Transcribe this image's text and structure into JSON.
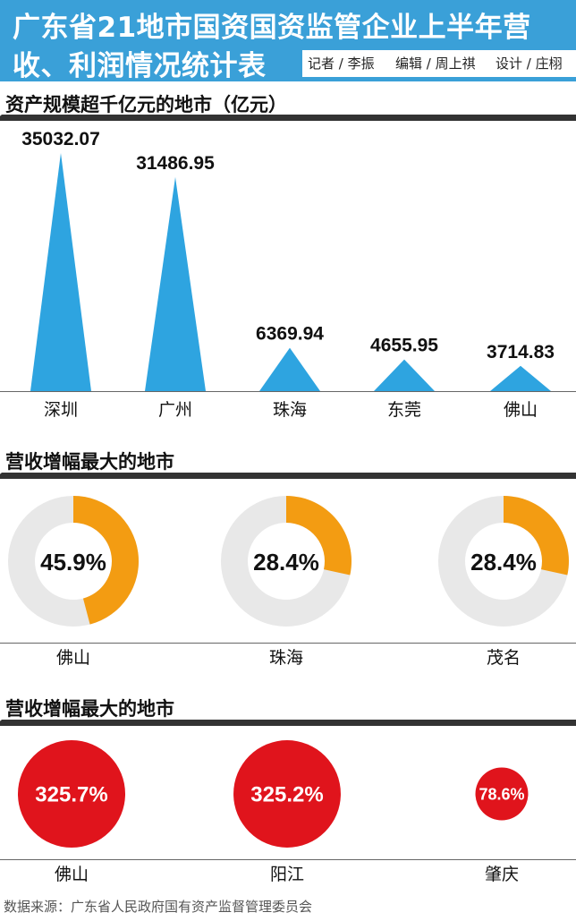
{
  "header": {
    "title_line1": "广东省21地市国资国资监管企业上半年营",
    "title_line2": "收、利润情况统计表",
    "credit_reporter": "记者 / 李振",
    "credit_editor": "编辑 / 周上祺",
    "credit_design": "设计 / 庄栩"
  },
  "colors": {
    "header": "#3aa0d8",
    "bar": "#2ea4e0",
    "donut_fill": "#f39c12",
    "donut_track": "#e8e8e8",
    "bubble": "#e0141c"
  },
  "chart_data": [
    {
      "type": "bar",
      "title": "资产规模超千亿元的地市（亿元）",
      "categories": [
        "深圳",
        "广州",
        "珠海",
        "东莞",
        "佛山"
      ],
      "values": [
        35032.07,
        31486.95,
        6369.94,
        4655.95,
        3714.83
      ],
      "value_labels": [
        "35032.07",
        "31486.95",
        "6369.94",
        "4655.95",
        "3714.83"
      ],
      "mark_shape": "triangle",
      "grid": false
    },
    {
      "type": "pie",
      "title": "营收增幅最大的地市",
      "categories": [
        "佛山",
        "珠海",
        "茂名"
      ],
      "values": [
        45.9,
        28.4,
        28.4
      ],
      "value_labels": [
        "45.9%",
        "28.4%",
        "28.4%"
      ],
      "mark_shape": "donut"
    },
    {
      "type": "scatter",
      "title": "营收增幅最大的地市",
      "categories": [
        "佛山",
        "阳江",
        "肇庆"
      ],
      "values": [
        325.7,
        325.2,
        78.6
      ],
      "value_labels": [
        "325.7%",
        "325.2%",
        "78.6%"
      ],
      "mark_shape": "bubble"
    }
  ],
  "footer": {
    "source": "数据来源：广东省人民政府国有资产监督管理委员会"
  }
}
